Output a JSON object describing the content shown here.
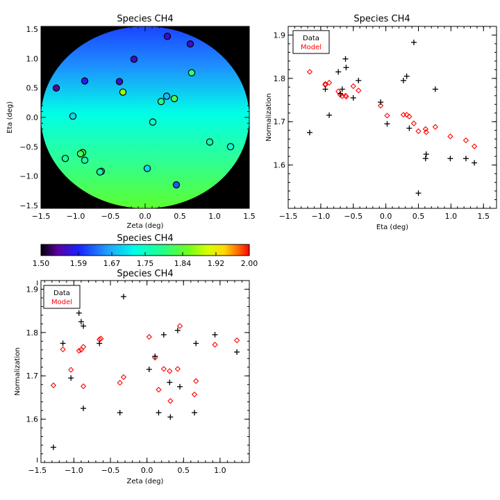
{
  "colors": {
    "data": "#000000",
    "model": "#ff0000",
    "background": "#000000"
  },
  "colorbar": {
    "title": "Species CH4",
    "range": [
      1.5,
      2.0
    ],
    "tick_labels": [
      "1.50",
      "1.59",
      "1.67",
      "1.75",
      "1.84",
      "1.92",
      "2.00"
    ]
  },
  "chart_data": [
    {
      "type": "scatter",
      "title": "Species CH4",
      "xlabel": "Zeta (deg)",
      "ylabel": "Eta (deg)",
      "xlim": [
        -1.5,
        1.5
      ],
      "ylim": [
        -1.55,
        1.55
      ],
      "xticks": [
        "−1.5",
        "−1.0",
        "−0.5",
        "0.0",
        "0.5",
        "1.0",
        "1.5"
      ],
      "yticks": [
        "−1.5",
        "−1.0",
        "−0.5",
        "0.0",
        "0.5",
        "1.0",
        "1.5"
      ],
      "field_of_view_radius_deg": 1.5,
      "color_scale": [
        1.5,
        2.0
      ],
      "points": [
        {
          "x": 0.32,
          "y": 1.38,
          "v": 1.56
        },
        {
          "x": 0.65,
          "y": 1.25,
          "v": 1.56
        },
        {
          "x": -0.16,
          "y": 0.99,
          "v": 1.56
        },
        {
          "x": -0.87,
          "y": 0.62,
          "v": 1.58
        },
        {
          "x": -0.37,
          "y": 0.61,
          "v": 1.57
        },
        {
          "x": -1.28,
          "y": 0.5,
          "v": 1.54
        },
        {
          "x": -0.32,
          "y": 0.43,
          "v": 1.87
        },
        {
          "x": 0.67,
          "y": 0.76,
          "v": 1.8
        },
        {
          "x": 0.31,
          "y": 0.36,
          "v": 1.68
        },
        {
          "x": 0.42,
          "y": 0.32,
          "v": 1.82
        },
        {
          "x": 0.23,
          "y": 0.27,
          "v": 1.79
        },
        {
          "x": -1.04,
          "y": 0.02,
          "v": 1.7
        },
        {
          "x": 0.11,
          "y": -0.08,
          "v": 1.75
        },
        {
          "x": 0.93,
          "y": -0.42,
          "v": 1.77
        },
        {
          "x": 1.23,
          "y": -0.5,
          "v": 1.74
        },
        {
          "x": -0.9,
          "y": -0.6,
          "v": 1.83
        },
        {
          "x": -0.93,
          "y": -0.62,
          "v": 1.82
        },
        {
          "x": -1.15,
          "y": -0.7,
          "v": 1.78
        },
        {
          "x": -0.87,
          "y": -0.73,
          "v": 1.77
        },
        {
          "x": 0.03,
          "y": -0.87,
          "v": 1.7
        },
        {
          "x": -0.63,
          "y": -0.92,
          "v": 1.77
        },
        {
          "x": -0.65,
          "y": -0.93,
          "v": 1.77
        },
        {
          "x": 0.45,
          "y": -1.15,
          "v": 1.62
        }
      ]
    },
    {
      "type": "scatter",
      "title": "Species CH4",
      "xlabel": "Eta (deg)",
      "ylabel": "Normalization",
      "xlim": [
        -1.5,
        1.7
      ],
      "ylim": [
        1.5,
        1.92
      ],
      "xticks": [
        "−1.5",
        "−1.0",
        "−0.5",
        "0.0",
        "0.5",
        "1.0",
        "1.5"
      ],
      "yticks": [
        "1.6",
        "1.7",
        "1.8",
        "1.9"
      ],
      "legend": {
        "entries": [
          "Data",
          "Model"
        ],
        "position": "top-left"
      },
      "series": [
        {
          "name": "Data",
          "marker": "plus",
          "points": [
            [
              -1.17,
              1.675
            ],
            [
              -0.93,
              1.775
            ],
            [
              -0.87,
              1.715
            ],
            [
              -0.73,
              1.815
            ],
            [
              -0.7,
              1.765
            ],
            [
              -0.67,
              1.775
            ],
            [
              -0.62,
              1.845
            ],
            [
              -0.61,
              1.825
            ],
            [
              -0.5,
              1.755
            ],
            [
              -0.42,
              1.795
            ],
            [
              -0.08,
              1.745
            ],
            [
              0.02,
              1.695
            ],
            [
              0.27,
              1.795
            ],
            [
              0.32,
              1.805
            ],
            [
              0.36,
              1.685
            ],
            [
              0.43,
              1.883
            ],
            [
              0.5,
              1.535
            ],
            [
              0.61,
              1.615
            ],
            [
              0.62,
              1.625
            ],
            [
              0.76,
              1.775
            ],
            [
              0.99,
              1.615
            ],
            [
              1.23,
              1.615
            ],
            [
              1.36,
              1.605
            ]
          ]
        },
        {
          "name": "Model",
          "marker": "diamond",
          "points": [
            [
              -1.17,
              1.815
            ],
            [
              -0.93,
              1.785
            ],
            [
              -0.93,
              1.787
            ],
            [
              -0.87,
              1.79
            ],
            [
              -0.73,
              1.77
            ],
            [
              -0.7,
              1.762
            ],
            [
              -0.67,
              1.759
            ],
            [
              -0.62,
              1.76
            ],
            [
              -0.61,
              1.758
            ],
            [
              -0.5,
              1.782
            ],
            [
              -0.42,
              1.772
            ],
            [
              -0.08,
              1.737
            ],
            [
              0.02,
              1.714
            ],
            [
              0.27,
              1.716
            ],
            [
              0.32,
              1.716
            ],
            [
              0.36,
              1.712
            ],
            [
              0.43,
              1.696
            ],
            [
              0.5,
              1.678
            ],
            [
              0.61,
              1.683
            ],
            [
              0.62,
              1.676
            ],
            [
              0.76,
              1.688
            ],
            [
              0.99,
              1.666
            ],
            [
              1.23,
              1.657
            ],
            [
              1.36,
              1.643
            ]
          ]
        }
      ]
    },
    {
      "type": "scatter",
      "title": "Species CH4",
      "xlabel": "Zeta (deg)",
      "ylabel": "Normalization",
      "xlim": [
        -1.45,
        1.4
      ],
      "ylim": [
        1.5,
        1.92
      ],
      "xticks": [
        "−1.5",
        "−1.0",
        "−0.5",
        "0.0",
        "0.5",
        "1.0"
      ],
      "yticks": [
        "1.6",
        "1.7",
        "1.8",
        "1.9"
      ],
      "legend": {
        "entries": [
          "Data",
          "Model"
        ],
        "position": "top-left"
      },
      "series": [
        {
          "name": "Data",
          "marker": "plus",
          "points": [
            [
              -1.28,
              1.535
            ],
            [
              -1.15,
              1.775
            ],
            [
              -1.04,
              1.695
            ],
            [
              -0.93,
              1.845
            ],
            [
              -0.9,
              1.825
            ],
            [
              -0.87,
              1.815
            ],
            [
              -0.87,
              1.625
            ],
            [
              -0.65,
              1.775
            ],
            [
              -0.37,
              1.615
            ],
            [
              -0.32,
              1.883
            ],
            [
              0.03,
              1.715
            ],
            [
              0.11,
              1.745
            ],
            [
              0.16,
              1.615
            ],
            [
              0.23,
              1.795
            ],
            [
              0.31,
              1.685
            ],
            [
              0.32,
              1.605
            ],
            [
              0.42,
              1.805
            ],
            [
              0.45,
              1.675
            ],
            [
              0.65,
              1.615
            ],
            [
              0.67,
              1.775
            ],
            [
              0.93,
              1.795
            ],
            [
              1.23,
              1.755
            ]
          ]
        },
        {
          "name": "Model",
          "marker": "diamond",
          "points": [
            [
              -1.28,
              1.678
            ],
            [
              -1.15,
              1.761
            ],
            [
              -1.04,
              1.714
            ],
            [
              -0.93,
              1.758
            ],
            [
              -0.9,
              1.76
            ],
            [
              -0.87,
              1.767
            ],
            [
              -0.87,
              1.676
            ],
            [
              -0.65,
              1.784
            ],
            [
              -0.63,
              1.786
            ],
            [
              -0.37,
              1.684
            ],
            [
              -0.32,
              1.697
            ],
            [
              0.03,
              1.79
            ],
            [
              0.11,
              1.742
            ],
            [
              0.16,
              1.668
            ],
            [
              0.23,
              1.716
            ],
            [
              0.31,
              1.711
            ],
            [
              0.32,
              1.642
            ],
            [
              0.42,
              1.716
            ],
            [
              0.45,
              1.815
            ],
            [
              0.65,
              1.657
            ],
            [
              0.67,
              1.688
            ],
            [
              0.93,
              1.772
            ],
            [
              1.23,
              1.782
            ]
          ]
        }
      ]
    }
  ]
}
